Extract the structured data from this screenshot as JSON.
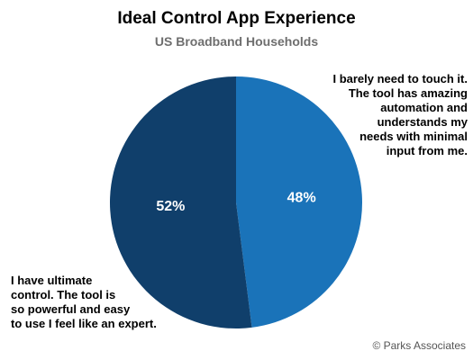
{
  "chart_data": {
    "type": "pie",
    "title": "Ideal Control App Experience",
    "subtitle": "US Broadband Households",
    "categories": [
      "I barely need to touch it. The tool has amazing automation and understands my needs with minimal input from me.",
      "I have ultimate control. The tool is so powerful and easy to use I feel like an expert."
    ],
    "values": [
      48,
      52
    ],
    "labels": [
      "48%",
      "52%"
    ],
    "colors": [
      "#1a73b9",
      "#103f6b"
    ],
    "annotation_right": "I barely need to touch it.\nThe tool has amazing\nautomation and\nunderstands my\nneeds with minimal\ninput from me.",
    "annotation_left": "I have ultimate\ncontrol. The tool is\nso powerful and easy\nto use I feel like an expert.",
    "legend": "none"
  },
  "credit": "© Parks Associates"
}
